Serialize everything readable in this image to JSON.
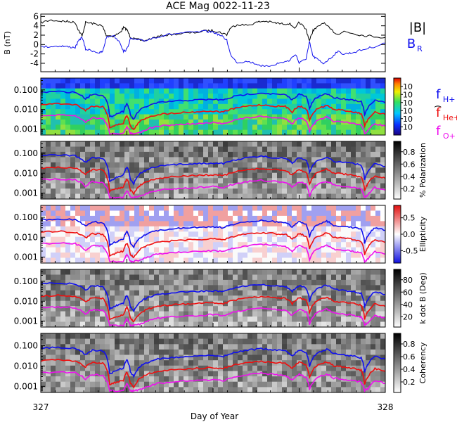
{
  "chart_data": {
    "type": "line",
    "title": "ACE Mag 0022-11-23",
    "xlabel": "Day of Year",
    "x_ticks": [
      "327",
      "328"
    ],
    "xlim": [
      327,
      328
    ],
    "colors": {
      "black": "#000000",
      "blue": "#1010ee",
      "red": "#ee1010",
      "magenta": "#ee10ee"
    },
    "panels": [
      {
        "id": "mag",
        "ylabel": "B (nT)",
        "yticks": [
          "6",
          "4",
          "2",
          "0",
          "-2",
          "-4"
        ],
        "ylim": [
          -5.8,
          6.5
        ],
        "legend": [
          {
            "label": "|B|",
            "color": "#000000"
          },
          {
            "label": "B",
            "sub": "R",
            "color": "#1010ee"
          }
        ],
        "series": [
          {
            "name": "|B|",
            "color": "#000000",
            "points": [
              [
                327.0,
                4.7
              ],
              [
                327.03,
                5.2
              ],
              [
                327.06,
                5.0
              ],
              [
                327.08,
                4.9
              ],
              [
                327.1,
                4.7
              ],
              [
                327.11,
                3.0
              ],
              [
                327.12,
                1.8
              ],
              [
                327.13,
                4.7
              ],
              [
                327.15,
                4.5
              ],
              [
                327.17,
                4.2
              ],
              [
                327.18,
                3.8
              ],
              [
                327.19,
                2.0
              ],
              [
                327.21,
                1.8
              ],
              [
                327.23,
                2.5
              ],
              [
                327.24,
                3.6
              ],
              [
                327.25,
                3.2
              ],
              [
                327.26,
                1.6
              ],
              [
                327.27,
                1.2
              ],
              [
                327.3,
                0.8
              ],
              [
                327.33,
                1.5
              ],
              [
                327.36,
                2.0
              ],
              [
                327.4,
                2.3
              ],
              [
                327.44,
                2.5
              ],
              [
                327.48,
                2.9
              ],
              [
                327.5,
                3.0
              ],
              [
                327.52,
                2.6
              ],
              [
                327.54,
                2.1
              ],
              [
                327.55,
                3.5
              ],
              [
                327.57,
                4.3
              ],
              [
                327.6,
                4.1
              ],
              [
                327.63,
                4.8
              ],
              [
                327.65,
                5.0
              ],
              [
                327.68,
                4.6
              ],
              [
                327.7,
                4.4
              ],
              [
                327.72,
                4.5
              ],
              [
                327.74,
                3.5
              ],
              [
                327.75,
                4.8
              ],
              [
                327.77,
                3.2
              ],
              [
                327.78,
                0.8
              ],
              [
                327.79,
                3.0
              ],
              [
                327.8,
                3.5
              ],
              [
                327.82,
                4.7
              ],
              [
                327.84,
                3.3
              ],
              [
                327.86,
                2.2
              ],
              [
                327.88,
                2.8
              ],
              [
                327.9,
                2.5
              ],
              [
                327.93,
                2.0
              ],
              [
                327.96,
                1.8
              ],
              [
                328.0,
                1.5
              ]
            ]
          },
          {
            "name": "B_R",
            "color": "#1010ee",
            "points": [
              [
                327.0,
                -0.5
              ],
              [
                327.03,
                -0.4
              ],
              [
                327.06,
                -0.3
              ],
              [
                327.08,
                -0.5
              ],
              [
                327.1,
                -0.6
              ],
              [
                327.11,
                0.8
              ],
              [
                327.12,
                1.6
              ],
              [
                327.13,
                -1.0
              ],
              [
                327.15,
                -1.3
              ],
              [
                327.17,
                -1.8
              ],
              [
                327.18,
                -1.5
              ],
              [
                327.19,
                1.5
              ],
              [
                327.21,
                2.0
              ],
              [
                327.23,
                0.5
              ],
              [
                327.24,
                -1.5
              ],
              [
                327.25,
                -1.0
              ],
              [
                327.26,
                1.2
              ],
              [
                327.28,
                1.0
              ],
              [
                327.3,
                0.8
              ],
              [
                327.33,
                1.5
              ],
              [
                327.36,
                2.0
              ],
              [
                327.4,
                2.4
              ],
              [
                327.44,
                2.6
              ],
              [
                327.48,
                2.8
              ],
              [
                327.5,
                2.7
              ],
              [
                327.52,
                2.0
              ],
              [
                327.54,
                1.0
              ],
              [
                327.55,
                -2.0
              ],
              [
                327.57,
                -3.8
              ],
              [
                327.6,
                -3.6
              ],
              [
                327.63,
                -4.2
              ],
              [
                327.65,
                -4.8
              ],
              [
                327.68,
                -4.2
              ],
              [
                327.7,
                -3.8
              ],
              [
                327.72,
                -3.5
              ],
              [
                327.74,
                -2.0
              ],
              [
                327.75,
                -4.0
              ],
              [
                327.77,
                -3.0
              ],
              [
                327.78,
                0.5
              ],
              [
                327.79,
                -2.5
              ],
              [
                327.8,
                -3.0
              ],
              [
                327.82,
                -4.0
              ],
              [
                327.84,
                -3.0
              ],
              [
                327.86,
                -1.5
              ],
              [
                327.88,
                -2.0
              ],
              [
                327.9,
                -1.8
              ],
              [
                327.93,
                -1.2
              ],
              [
                327.96,
                -0.6
              ],
              [
                328.0,
                0.3
              ]
            ]
          }
        ]
      },
      {
        "id": "power",
        "yticks": [
          "0.100",
          "0.010",
          "0.001"
        ],
        "ylog": true,
        "ylim": [
          0.0005,
          0.4
        ],
        "colorbar": {
          "label": ")",
          "ticks": [
            "10",
            "10",
            "10",
            "10",
            "10",
            "10"
          ],
          "style": "jet"
        },
        "legend": [
          {
            "label": "f",
            "sub": "H+",
            "color": "#1010ee"
          },
          {
            "label": "f",
            "sub": "He+",
            "color": "#ee1010"
          },
          {
            "label": "f",
            "sub": "O+",
            "color": "#ee10ee"
          }
        ]
      },
      {
        "id": "polarization",
        "yticks": [
          "0.100",
          "0.010",
          "0.001"
        ],
        "ylog": true,
        "ylim": [
          0.0005,
          0.4
        ],
        "colorbar": {
          "label": "% Polarization",
          "ticks": [
            "0.8",
            "0.6",
            "0.4",
            "0.2"
          ],
          "style": "gray"
        }
      },
      {
        "id": "ellipticity",
        "yticks": [
          "0.100",
          "0.010",
          "0.001"
        ],
        "ylog": true,
        "ylim": [
          0.0005,
          0.4
        ],
        "colorbar": {
          "label": "Ellipticity",
          "ticks": [
            "0.5",
            "0.0",
            "-0.5"
          ],
          "style": "bwr"
        }
      },
      {
        "id": "kdotb",
        "yticks": [
          "0.100",
          "0.010",
          "0.001"
        ],
        "ylog": true,
        "ylim": [
          0.0005,
          0.4
        ],
        "colorbar": {
          "label": "k dot B (Deg)",
          "ticks": [
            "80",
            "60",
            "40",
            "20"
          ],
          "style": "gray"
        }
      },
      {
        "id": "coherency",
        "yticks": [
          "0.100",
          "0.010",
          "0.001"
        ],
        "ylog": true,
        "ylim": [
          0.0005,
          0.4
        ],
        "colorbar": {
          "label": "Coherency",
          "ticks": [
            "0.8",
            "0.6",
            "0.4",
            "0.2"
          ],
          "style": "gray"
        }
      }
    ],
    "gyro_lines": [
      {
        "name": "f_H+",
        "color": "#1010ee",
        "points": [
          [
            327.0,
            0.075
          ],
          [
            327.05,
            0.082
          ],
          [
            327.1,
            0.075
          ],
          [
            327.13,
            0.035
          ],
          [
            327.15,
            0.06
          ],
          [
            327.18,
            0.055
          ],
          [
            327.2,
            0.004
          ],
          [
            327.22,
            0.006
          ],
          [
            327.24,
            0.008
          ],
          [
            327.25,
            0.02
          ],
          [
            327.26,
            0.005
          ],
          [
            327.27,
            0.003
          ],
          [
            327.29,
            0.01
          ],
          [
            327.31,
            0.015
          ],
          [
            327.34,
            0.022
          ],
          [
            327.38,
            0.026
          ],
          [
            327.42,
            0.029
          ],
          [
            327.46,
            0.031
          ],
          [
            327.5,
            0.033
          ],
          [
            327.53,
            0.03
          ],
          [
            327.56,
            0.045
          ],
          [
            327.6,
            0.06
          ],
          [
            327.64,
            0.07
          ],
          [
            327.68,
            0.06
          ],
          [
            327.71,
            0.055
          ],
          [
            327.73,
            0.03
          ],
          [
            327.75,
            0.06
          ],
          [
            327.77,
            0.045
          ],
          [
            327.78,
            0.01
          ],
          [
            327.8,
            0.04
          ],
          [
            327.83,
            0.065
          ],
          [
            327.85,
            0.04
          ],
          [
            327.88,
            0.035
          ],
          [
            327.91,
            0.03
          ],
          [
            327.93,
            0.025
          ],
          [
            327.94,
            0.005
          ],
          [
            327.95,
            0.012
          ],
          [
            327.97,
            0.03
          ],
          [
            328.0,
            0.022
          ]
        ]
      },
      {
        "name": "f_He+",
        "color": "#ee1010",
        "points": [
          [
            327.0,
            0.018
          ],
          [
            327.05,
            0.02
          ],
          [
            327.1,
            0.018
          ],
          [
            327.13,
            0.009
          ],
          [
            327.15,
            0.015
          ],
          [
            327.18,
            0.014
          ],
          [
            327.2,
            0.0012
          ],
          [
            327.22,
            0.0016
          ],
          [
            327.24,
            0.002
          ],
          [
            327.25,
            0.005
          ],
          [
            327.26,
            0.0014
          ],
          [
            327.27,
            0.0009
          ],
          [
            327.29,
            0.0026
          ],
          [
            327.31,
            0.004
          ],
          [
            327.34,
            0.0055
          ],
          [
            327.38,
            0.0065
          ],
          [
            327.42,
            0.0072
          ],
          [
            327.46,
            0.0078
          ],
          [
            327.5,
            0.0082
          ],
          [
            327.53,
            0.0075
          ],
          [
            327.56,
            0.011
          ],
          [
            327.6,
            0.015
          ],
          [
            327.64,
            0.017
          ],
          [
            327.68,
            0.015
          ],
          [
            327.71,
            0.014
          ],
          [
            327.73,
            0.0075
          ],
          [
            327.75,
            0.015
          ],
          [
            327.77,
            0.011
          ],
          [
            327.78,
            0.0026
          ],
          [
            327.8,
            0.01
          ],
          [
            327.83,
            0.016
          ],
          [
            327.85,
            0.01
          ],
          [
            327.88,
            0.009
          ],
          [
            327.91,
            0.0075
          ],
          [
            327.93,
            0.0062
          ],
          [
            327.94,
            0.0013
          ],
          [
            327.95,
            0.003
          ],
          [
            327.97,
            0.0075
          ],
          [
            328.0,
            0.0055
          ]
        ]
      },
      {
        "name": "f_O+",
        "color": "#ee10ee",
        "points": [
          [
            327.0,
            0.0047
          ],
          [
            327.05,
            0.0051
          ],
          [
            327.1,
            0.0047
          ],
          [
            327.13,
            0.0022
          ],
          [
            327.15,
            0.0038
          ],
          [
            327.18,
            0.0034
          ],
          [
            327.2,
            0.0006
          ],
          [
            327.22,
            0.0006
          ],
          [
            327.24,
            0.0006
          ],
          [
            327.25,
            0.0013
          ],
          [
            327.26,
            0.0006
          ],
          [
            327.27,
            0.0006
          ],
          [
            327.29,
            0.0007
          ],
          [
            327.31,
            0.001
          ],
          [
            327.34,
            0.0014
          ],
          [
            327.38,
            0.0016
          ],
          [
            327.42,
            0.0018
          ],
          [
            327.46,
            0.0019
          ],
          [
            327.5,
            0.0021
          ],
          [
            327.53,
            0.0019
          ],
          [
            327.56,
            0.0028
          ],
          [
            327.6,
            0.0038
          ],
          [
            327.64,
            0.0044
          ],
          [
            327.68,
            0.0038
          ],
          [
            327.71,
            0.0034
          ],
          [
            327.73,
            0.0019
          ],
          [
            327.75,
            0.0038
          ],
          [
            327.77,
            0.0028
          ],
          [
            327.78,
            0.0007
          ],
          [
            327.8,
            0.0025
          ],
          [
            327.83,
            0.004
          ],
          [
            327.85,
            0.0025
          ],
          [
            327.88,
            0.0022
          ],
          [
            327.91,
            0.0019
          ],
          [
            327.93,
            0.0016
          ],
          [
            327.94,
            0.0006
          ],
          [
            327.95,
            0.0008
          ],
          [
            327.97,
            0.0019
          ],
          [
            328.0,
            0.0014
          ]
        ]
      }
    ]
  }
}
